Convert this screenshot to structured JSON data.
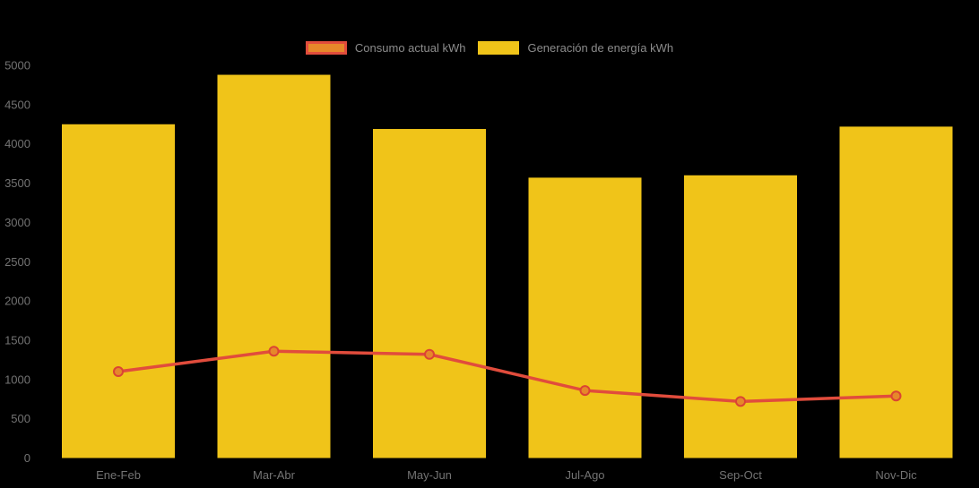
{
  "page": {
    "background": "#000000"
  },
  "legend": {
    "position": "top-center",
    "text_color": "#8c8c8c",
    "items": [
      {
        "label": "Consumo actual kWh",
        "swatch_fill": "#E6882A",
        "swatch_border": "#E14C3C"
      },
      {
        "label": "Generación de energía kWh",
        "swatch_fill": "#F0C419",
        "swatch_border": "#F0C419"
      }
    ]
  },
  "chart_data": {
    "type": "bar",
    "subtype": "bar-line-combo",
    "title": "",
    "xlabel": "",
    "ylabel": "",
    "categories": [
      "Ene-Feb",
      "Mar-Abr",
      "May-Jun",
      "Jul-Ago",
      "Sep-Oct",
      "Nov-Dic"
    ],
    "series": [
      {
        "name": "Consumo actual kWh",
        "type": "line",
        "values": [
          1100,
          1360,
          1320,
          860,
          720,
          790
        ],
        "line_color": "#E14C3C",
        "point_fill": "#E6882A",
        "point_stroke": "#DB4433"
      },
      {
        "name": "Generación de energía kWh",
        "type": "bar",
        "values": [
          4250,
          4880,
          4190,
          3570,
          3600,
          4220
        ],
        "color": "#F0C419"
      }
    ],
    "ylim": [
      0,
      5000
    ],
    "ytick_step": 500,
    "ytick_labels": [
      "0",
      "500",
      "1000",
      "1500",
      "2000",
      "2500",
      "3000",
      "3500",
      "4000",
      "4500",
      "5000"
    ],
    "grid": false,
    "legend_position": "top",
    "axis_text_color": "#737373",
    "background": "#000000"
  }
}
